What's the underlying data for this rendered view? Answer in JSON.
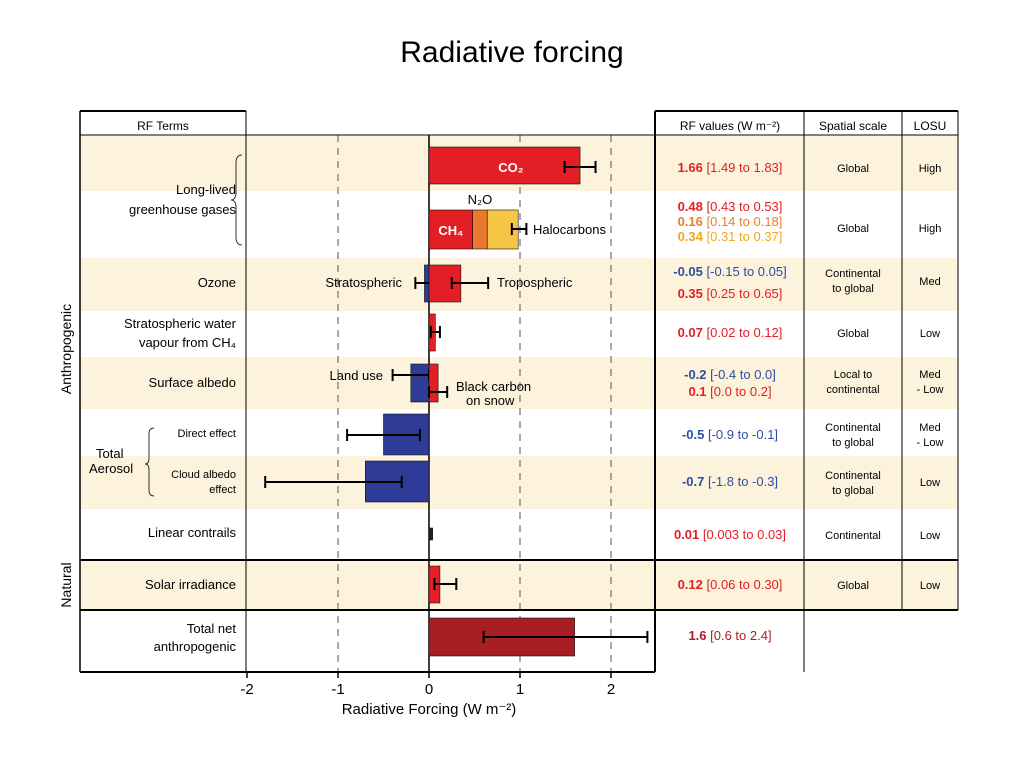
{
  "slide": {
    "title": "Radiative forcing"
  },
  "colors": {
    "band": "#fdf2dc",
    "positive": "#e31e24",
    "negative": "#2f3c97",
    "n2o": "#e8792c",
    "halocarbons": "#f6c543",
    "net": "#a91e23",
    "pos_text": "#e31e24",
    "neg_text": "#2b4fa2",
    "halo_text": "#f2a81d",
    "n2o_text": "#e87f2d"
  },
  "table": {
    "headers": {
      "terms": "RF Terms",
      "rf_values": "RF values (W m⁻²)",
      "spatial": "Spatial scale",
      "losu": "LOSU"
    },
    "groups": {
      "anthropogenic": "Anthropogenic",
      "natural": "Natural"
    },
    "terms": {
      "lived_line1": "Long-lived",
      "lived_line2": "greenhouse gases",
      "ozone": "Ozone",
      "strat_line1": "Stratospheric water",
      "strat_line2": "vapour from CH₄",
      "albedo": "Surface albedo",
      "aerosol_line1": "Total",
      "aerosol_line2": "Aerosol",
      "direct": "Direct effect",
      "cloud_line1": "Cloud albedo",
      "cloud_line2": "effect",
      "contrails": "Linear contrails",
      "solar": "Solar irradiance",
      "net_line1": "Total net",
      "net_line2": "anthropogenic"
    },
    "rf_values": {
      "co2": [
        "1.66",
        " [1.49 to 1.83]"
      ],
      "ch4": [
        "0.48",
        " [0.43 to 0.53]"
      ],
      "n2o": [
        "0.16",
        " [0.14 to 0.18]"
      ],
      "halocarbons": [
        "0.34",
        " [0.31 to 0.37]"
      ],
      "ozone_strat": [
        "-0.05",
        " [-0.15 to 0.05]"
      ],
      "ozone_trop": [
        "0.35",
        " [0.25 to 0.65]"
      ],
      "strat_water": [
        "0.07",
        " [0.02 to 0.12]"
      ],
      "land_use": [
        "-0.2",
        " [-0.4 to 0.0]"
      ],
      "black_carbon": [
        "0.1",
        " [0.0 to 0.2]"
      ],
      "direct": [
        "-0.5",
        " [-0.9 to -0.1]"
      ],
      "cloud": [
        "-0.7",
        " [-1.8 to -0.3]"
      ],
      "contrails": [
        "0.01",
        " [0.003 to 0.03]"
      ],
      "solar": [
        "0.12",
        " [0.06 to 0.30]"
      ],
      "net": [
        "1.6",
        " [0.6 to 2.4]"
      ]
    },
    "spatial": {
      "lived1": "Global",
      "lived2": "Global",
      "ozone_l1": "Continental",
      "ozone_l2": "to global",
      "strat": "Global",
      "albedo_l1": "Local to",
      "albedo_l2": "continental",
      "direct_l1": "Continental",
      "direct_l2": "to global",
      "cloud_l1": "Continental",
      "cloud_l2": "to global",
      "contrails": "Continental",
      "solar": "Global"
    },
    "losu": {
      "lived1": "High",
      "lived2": "High",
      "ozone": "Med",
      "strat": "Low",
      "albedo_l1": "Med",
      "albedo_l2": "- Low",
      "direct_l1": "Med",
      "direct_l2": "- Low",
      "cloud": "Low",
      "contrails": "Low",
      "solar": "Low"
    }
  },
  "chart_data": {
    "type": "bar",
    "orientation": "horizontal",
    "title": "Radiative forcing",
    "xlabel": "Radiative Forcing  (W m⁻²)",
    "xlim": [
      -2,
      2.5
    ],
    "xticks": [
      -2,
      -1,
      0,
      1,
      2
    ],
    "grid": "dashed vertical lines at -1, 1 and 2",
    "series": [
      {
        "name": "CO₂",
        "row": "lived1",
        "value": 1.66,
        "low": 1.49,
        "high": 1.83
      },
      {
        "name": "CH₄",
        "row": "lived2",
        "value": 0.48,
        "low": 0.43,
        "high": 0.53
      },
      {
        "name": "N₂O",
        "row": "lived2",
        "value": 0.16,
        "low": 0.14,
        "high": 0.18
      },
      {
        "name": "Halocarbons",
        "row": "lived2",
        "value": 0.34,
        "low": 0.31,
        "high": 0.37
      },
      {
        "name": "Stratospheric",
        "row": "ozone",
        "value": -0.05,
        "low": -0.15,
        "high": 0.05
      },
      {
        "name": "Tropospheric",
        "row": "ozone",
        "value": 0.35,
        "low": 0.25,
        "high": 0.65
      },
      {
        "name": "",
        "row": "strat",
        "value": 0.07,
        "low": 0.02,
        "high": 0.12
      },
      {
        "name": "Land use",
        "row": "albedo",
        "value": -0.2,
        "low": -0.4,
        "high": 0.0
      },
      {
        "name": "Black carbon on snow",
        "row": "albedo",
        "value": 0.1,
        "low": 0.0,
        "high": 0.2
      },
      {
        "name": "",
        "row": "direct",
        "value": -0.5,
        "low": -0.9,
        "high": -0.1
      },
      {
        "name": "",
        "row": "cloud",
        "value": -0.7,
        "low": -1.8,
        "high": -0.3
      },
      {
        "name": "",
        "row": "contrails",
        "value": 0.01,
        "low": 0.003,
        "high": 0.03
      },
      {
        "name": "",
        "row": "solar",
        "value": 0.12,
        "low": 0.06,
        "high": 0.3
      },
      {
        "name": "",
        "row": "net",
        "value": 1.6,
        "low": 0.6,
        "high": 2.4
      }
    ],
    "bar_labels": {
      "co2": "CO₂",
      "ch4": "CH₄",
      "n2o": "N₂O",
      "halocarbons": "Halocarbons",
      "strat": "Stratospheric",
      "trop": "Tropospheric",
      "land_use": "Land use",
      "black_line1": "Black carbon",
      "black_line2": "on snow"
    }
  }
}
